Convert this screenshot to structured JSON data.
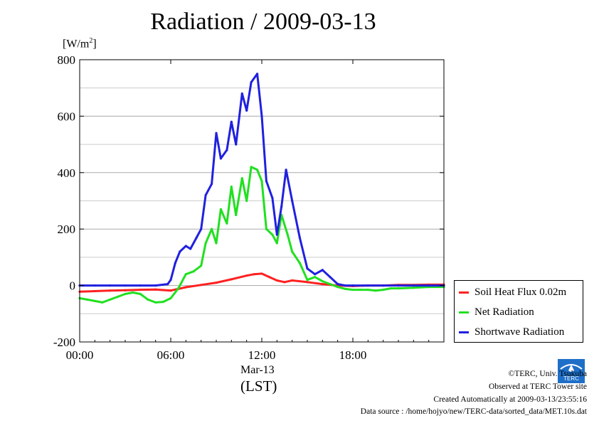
{
  "chart_data": {
    "type": "line",
    "title": "Radiation / 2009-03-13",
    "ylabel": "[W/m2]",
    "ylabel_base": "[W/m",
    "ylabel_sup": "2",
    "ylabel_close": "]",
    "xlabel_date": "Mar-13",
    "xlabel_unit": "(LST)",
    "ylim": [
      -200,
      800
    ],
    "xlim": [
      0,
      24
    ],
    "yticks": [
      -200,
      0,
      200,
      400,
      600,
      800
    ],
    "yticklabels": [
      "-200",
      "0",
      "200",
      "400",
      "600",
      "800"
    ],
    "xticks": [
      0,
      6,
      12,
      18
    ],
    "xticklabels": [
      "00:00",
      "06:00",
      "12:00",
      "18:00"
    ],
    "grid": true,
    "legend_position": "bottom-right-outside",
    "series": [
      {
        "name": "Soil Heat Flux 0.02m",
        "color": "#ff2020",
        "x": [
          0,
          1,
          2,
          3,
          4,
          5,
          5.5,
          6,
          6.5,
          7,
          8,
          9,
          10,
          11,
          11.5,
          12,
          12.5,
          13,
          13.5,
          14,
          15,
          16,
          17,
          18,
          19,
          20,
          21,
          22,
          23,
          24
        ],
        "y": [
          -22,
          -20,
          -18,
          -17,
          -15,
          -14,
          -16,
          -18,
          -12,
          -6,
          2,
          10,
          22,
          35,
          40,
          42,
          30,
          18,
          12,
          18,
          12,
          5,
          0,
          -2,
          0,
          0,
          2,
          2,
          3,
          3
        ]
      },
      {
        "name": "Net Radiation",
        "color": "#20e020",
        "x": [
          0,
          0.5,
          1,
          1.5,
          2,
          2.5,
          3,
          3.5,
          4,
          4.5,
          5,
          5.5,
          6,
          6.5,
          7,
          7.5,
          8,
          8.3,
          8.7,
          9,
          9.3,
          9.7,
          10,
          10.3,
          10.7,
          11,
          11.3,
          11.7,
          12,
          12.3,
          12.7,
          13,
          13.3,
          13.7,
          14,
          14.5,
          15,
          15.5,
          16,
          16.5,
          17,
          17.5,
          18,
          18.5,
          19,
          19.5,
          20,
          20.5,
          21,
          22,
          23,
          24
        ],
        "y": [
          -45,
          -50,
          -55,
          -60,
          -50,
          -40,
          -30,
          -25,
          -30,
          -50,
          -60,
          -58,
          -45,
          -10,
          40,
          50,
          70,
          150,
          200,
          150,
          270,
          220,
          350,
          250,
          380,
          300,
          420,
          410,
          370,
          200,
          180,
          150,
          250,
          180,
          120,
          80,
          20,
          30,
          15,
          5,
          -5,
          -12,
          -15,
          -15,
          -15,
          -18,
          -15,
          -10,
          -10,
          -8,
          -5,
          -5
        ]
      },
      {
        "name": "Shortwave Radiation",
        "color": "#2020e0",
        "x": [
          0,
          1,
          2,
          3,
          4,
          5,
          5.8,
          6,
          6.3,
          6.6,
          7,
          7.3,
          7.7,
          8,
          8.3,
          8.7,
          9,
          9.3,
          9.7,
          10,
          10.3,
          10.7,
          11,
          11.3,
          11.7,
          12,
          12.3,
          12.7,
          13,
          13.3,
          13.6,
          14,
          14.5,
          15,
          15.5,
          16,
          16.5,
          17,
          17.5,
          18,
          19,
          20,
          21,
          22,
          23,
          24
        ],
        "y": [
          0,
          0,
          0,
          0,
          0,
          0,
          5,
          20,
          80,
          120,
          140,
          130,
          170,
          200,
          320,
          360,
          540,
          450,
          480,
          580,
          500,
          680,
          620,
          720,
          750,
          600,
          370,
          310,
          180,
          280,
          410,
          300,
          170,
          60,
          40,
          55,
          30,
          5,
          0,
          0,
          0,
          0,
          0,
          0,
          0,
          0
        ]
      }
    ]
  },
  "footer": {
    "copyright": "©TERC, Univ. Tsukuba",
    "observed": "Observed at TERC Tower site",
    "created": "Created Automatically at 2009-03-13/23:55:16",
    "source": "Data source : /home/hojyo/new/TERC-data/sorted_data/MET.10s.dat"
  },
  "logo_text": "TERC"
}
